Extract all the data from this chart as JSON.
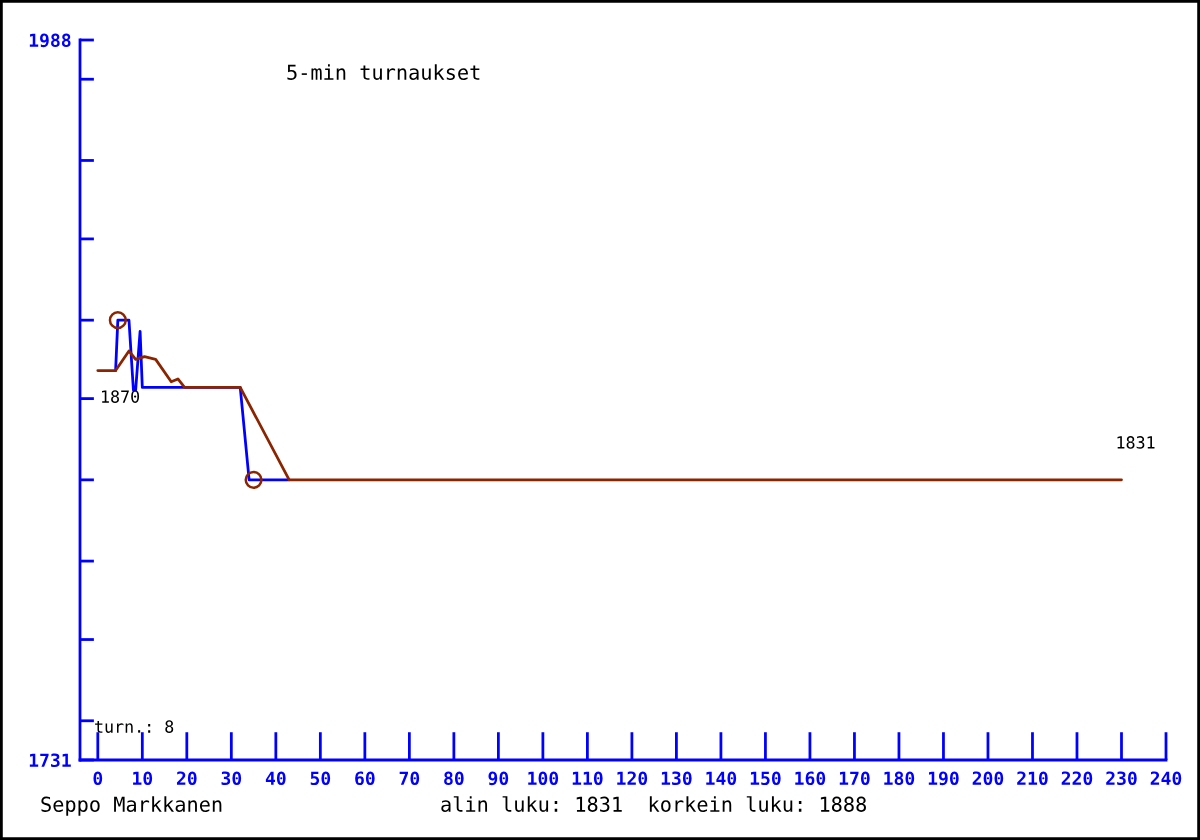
{
  "chart_data": {
    "type": "line",
    "title": "5-min turnaukset",
    "series": [
      {
        "color": "#0000ff",
        "x": [
          4,
          4.5,
          7,
          8,
          8.5,
          9.5,
          10,
          20,
          32,
          34,
          43
        ],
        "values": [
          1870,
          1888,
          1888,
          1863,
          1863,
          1884,
          1864,
          1864,
          1864,
          1831,
          1831
        ]
      },
      {
        "color": "#8b2500",
        "x": [
          0,
          4,
          7,
          8.5,
          10.5,
          13,
          16.5,
          18,
          19.5,
          32,
          43,
          230
        ],
        "values": [
          1870,
          1870,
          1877,
          1874,
          1875,
          1874,
          1866,
          1867,
          1864,
          1864,
          1831,
          1831
        ]
      },
      {
        "type": "scatter",
        "color": "#8b2500",
        "marker": "circle",
        "x": [
          4.5,
          35
        ],
        "values": [
          1888,
          1831
        ]
      }
    ],
    "xlim": [
      -4,
      240
    ],
    "xticks": [
      0,
      10,
      20,
      30,
      40,
      50,
      60,
      70,
      80,
      90,
      100,
      110,
      120,
      130,
      140,
      150,
      160,
      170,
      180,
      190,
      200,
      210,
      220,
      230,
      240
    ],
    "ylim": [
      1731,
      1988
    ],
    "yticks": [
      {
        "value": 1731,
        "label": "1731"
      },
      {
        "value": 1745,
        "label": null
      },
      {
        "value": 1774,
        "label": null
      },
      {
        "value": 1802,
        "label": null
      },
      {
        "value": 1831,
        "label": null
      },
      {
        "value": 1860,
        "label": null
      },
      {
        "value": 1888,
        "label": null
      },
      {
        "value": 1917,
        "label": null
      },
      {
        "value": 1945,
        "label": null
      },
      {
        "value": 1974,
        "label": null
      },
      {
        "value": 1988,
        "label": "1988"
      }
    ],
    "annotations": [
      "1870",
      {
        "text": "1831",
        "x": 230,
        "y": 1831
      },
      "turn.: 8",
      "Seppo Markkanen",
      "alin luku: 1831  korkein luku: 1888"
    ]
  }
}
